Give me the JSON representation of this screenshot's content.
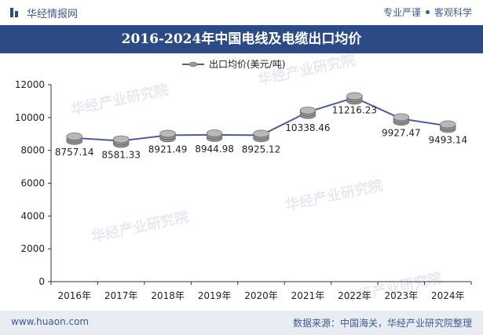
{
  "header": {
    "brand": "华经情报网",
    "tag_1": "专业严谨",
    "tag_2": "客观科学"
  },
  "title": "2016-2024年中国电线及电缆出口均价",
  "footer": {
    "website": "www.huaon.com",
    "source": "数据来源：中国海关，华经产业研究院整理"
  },
  "watermark": "华经产业研究院",
  "colors": {
    "brand_blue": "#2b4a86",
    "line": "#4a5fa0",
    "coin": "#9a9a9a"
  },
  "chart_data": {
    "type": "line",
    "title": "2016-2024年中国电线及电缆出口均价",
    "categories": [
      "2016年",
      "2017年",
      "2018年",
      "2019年",
      "2020年",
      "2021年",
      "2022年",
      "2023年",
      "2024年"
    ],
    "series": [
      {
        "name": "出口均价(美元/吨)",
        "values": [
          8757.14,
          8581.33,
          8921.49,
          8944.98,
          8925.12,
          10338.46,
          11216.23,
          9927.47,
          9493.14
        ]
      }
    ],
    "data_labels": [
      "8757.14",
      "8581.33",
      "8921.49",
      "8944.98",
      "8925.12",
      "10338.46",
      "11216.23",
      "9927.47",
      "9493.14"
    ],
    "y_ticks": [
      "0",
      "2000",
      "4000",
      "6000",
      "8000",
      "10000",
      "12000"
    ],
    "ylim": [
      0,
      12000
    ],
    "legend_position": "top-center",
    "grid": false
  }
}
